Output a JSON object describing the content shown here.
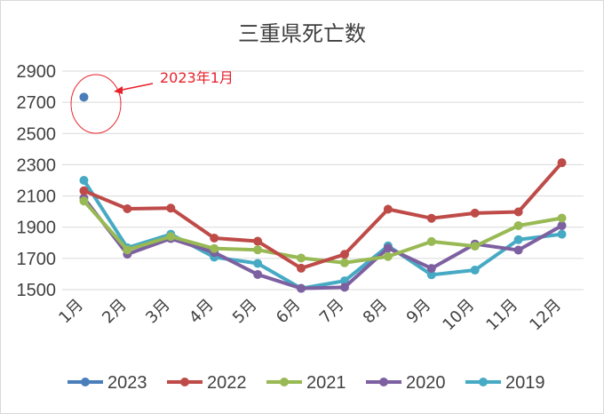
{
  "chart_data": {
    "type": "line",
    "title": "三重県死亡数",
    "categories": [
      "1月",
      "2月",
      "3月",
      "4月",
      "5月",
      "6月",
      "7月",
      "8月",
      "9月",
      "10月",
      "11月",
      "12月"
    ],
    "ylim": [
      1500,
      2900
    ],
    "yticks": [
      1500,
      1700,
      1900,
      2100,
      2300,
      2500,
      2700,
      2900
    ],
    "grid": true,
    "legend": "bottom",
    "series": [
      {
        "name": "2023",
        "color": "#4a7ebb",
        "values": [
          2733,
          null,
          null,
          null,
          null,
          null,
          null,
          null,
          null,
          null,
          null,
          null
        ]
      },
      {
        "name": "2022",
        "color": "#be4b48",
        "values": [
          2133,
          2018,
          2022,
          1830,
          1810,
          1637,
          1726,
          2015,
          1957,
          1990,
          1998,
          2313
        ]
      },
      {
        "name": "2021",
        "color": "#98b954",
        "values": [
          2068,
          1755,
          1840,
          1763,
          1755,
          1702,
          1672,
          1712,
          1808,
          1778,
          1910,
          1958
        ]
      },
      {
        "name": "2020",
        "color": "#7d60a0",
        "values": [
          2087,
          1727,
          1827,
          1738,
          1597,
          1508,
          1515,
          1766,
          1636,
          1792,
          1753,
          1910
        ]
      },
      {
        "name": "2019",
        "color": "#46aac4",
        "values": [
          2200,
          1768,
          1855,
          1708,
          1668,
          1508,
          1556,
          1780,
          1595,
          1625,
          1820,
          1855
        ]
      }
    ],
    "annotations": [
      {
        "text": "2023年1月",
        "target": {
          "series": "2023",
          "category": "1月"
        }
      }
    ]
  }
}
